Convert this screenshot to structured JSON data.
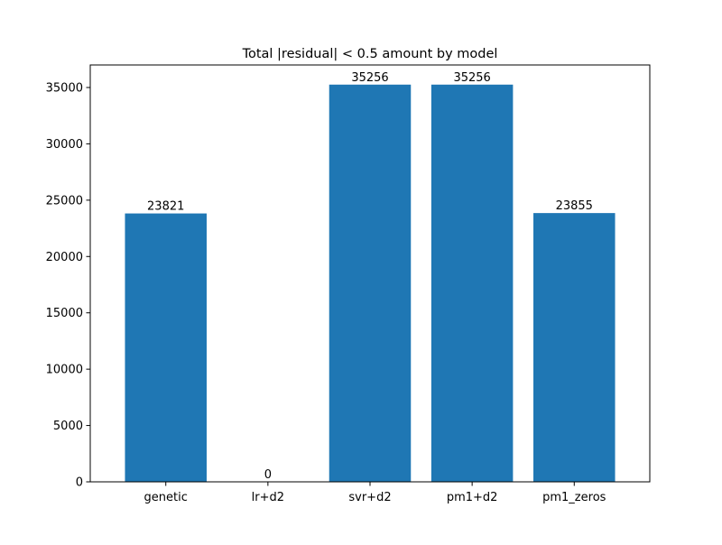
{
  "chart_data": {
    "type": "bar",
    "title": "Total |residual| < 0.5 amount by model",
    "xlabel": "",
    "ylabel": "",
    "categories": [
      "genetic",
      "lr+d2",
      "svr+d2",
      "pm1+d2",
      "pm1_zeros"
    ],
    "values": [
      23821,
      0,
      35256,
      35256,
      23855
    ],
    "data_labels": [
      "23821",
      "0",
      "35256",
      "35256",
      "23855"
    ],
    "ylim": [
      0,
      37000
    ],
    "yticks": [
      0,
      5000,
      10000,
      15000,
      20000,
      25000,
      30000,
      35000
    ],
    "ytick_labels": [
      "0",
      "5000",
      "10000",
      "15000",
      "20000",
      "25000",
      "30000",
      "35000"
    ],
    "bar_color": "#1f77b4",
    "grid": false,
    "legend": "none"
  }
}
